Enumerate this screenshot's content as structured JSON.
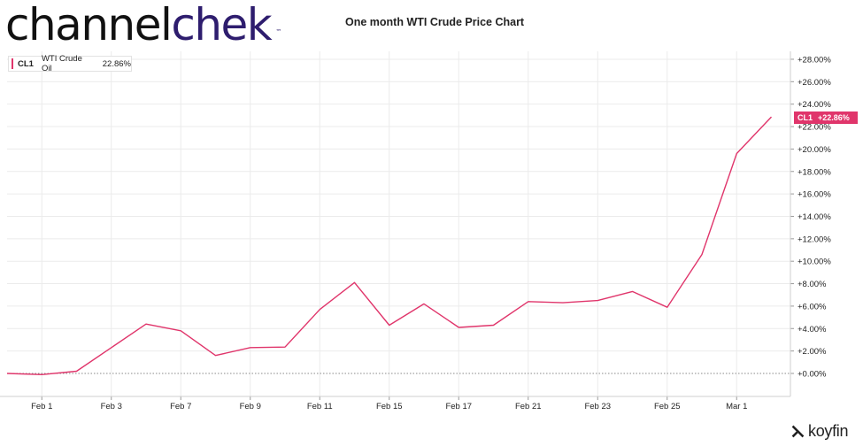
{
  "header": {
    "logo_part1": "channel",
    "logo_part2": "chek",
    "logo_tm": "™",
    "chart_title": "One month WTI Crude Price Chart"
  },
  "legend": {
    "ticker": "CL1",
    "name": "WTI Crude Oil",
    "value": "22.86%"
  },
  "badge": {
    "ticker": "CL1",
    "value": "+22.86%"
  },
  "brand": {
    "name": "koyfin"
  },
  "colors": {
    "series": "#e0356b",
    "grid": "#ebebeb",
    "zero_line": "#888888",
    "axis": "#cfcfcf"
  },
  "chart_data": {
    "type": "line",
    "title": "One month WTI Crude Price Chart",
    "xlabel": "",
    "ylabel": "",
    "ylim": [
      -2,
      28.5
    ],
    "grid": true,
    "legend_position": "top-left",
    "y_ticks": [
      "+0.00%",
      "+2.00%",
      "+4.00%",
      "+6.00%",
      "+8.00%",
      "+10.00%",
      "+12.00%",
      "+14.00%",
      "+16.00%",
      "+18.00%",
      "+20.00%",
      "+22.00%",
      "+24.00%",
      "+26.00%",
      "+28.00%"
    ],
    "y_tick_values": [
      0,
      2,
      4,
      6,
      8,
      10,
      12,
      14,
      16,
      18,
      20,
      22,
      24,
      26,
      28
    ],
    "x_ticks": [
      "Feb 1",
      "Feb 3",
      "Feb 7",
      "Feb 9",
      "Feb 11",
      "Feb 15",
      "Feb 17",
      "Feb 21",
      "Feb 23",
      "Feb 25",
      "Mar 1"
    ],
    "x_tick_index": [
      1,
      3,
      5,
      7,
      9,
      11,
      13,
      15,
      17,
      19,
      21
    ],
    "series": [
      {
        "name": "WTI Crude Oil",
        "values": [
          0.0,
          -0.1,
          0.2,
          2.3,
          4.4,
          3.8,
          1.6,
          2.3,
          2.35,
          5.7,
          8.1,
          4.3,
          6.2,
          4.1,
          4.3,
          6.4,
          6.3,
          6.5,
          7.3,
          5.9,
          10.6,
          19.6,
          22.86
        ]
      }
    ]
  }
}
